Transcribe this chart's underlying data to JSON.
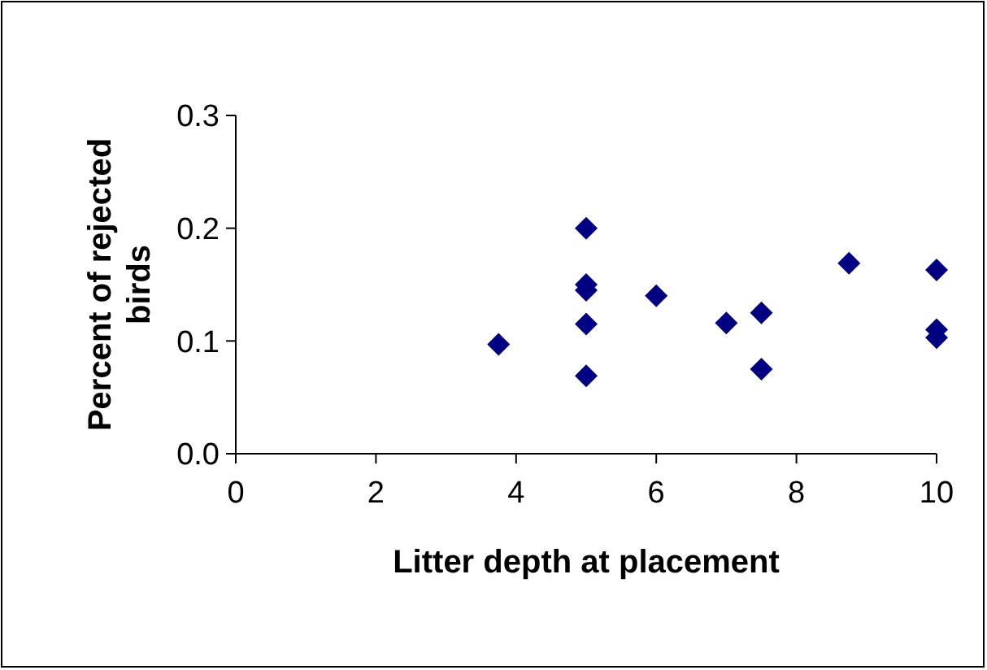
{
  "chart_data": {
    "type": "scatter",
    "xlabel": "Litter depth at placement",
    "ylabel": "Percent of rejected birds",
    "x": [
      3.75,
      5,
      5,
      5,
      5,
      5,
      6,
      7,
      7.5,
      7.5,
      8.75,
      10,
      10,
      10
    ],
    "values": [
      0.097,
      0.2,
      0.15,
      0.145,
      0.115,
      0.069,
      0.14,
      0.116,
      0.125,
      0.075,
      0.169,
      0.163,
      0.11,
      0.103
    ],
    "color": "#000080",
    "marker": "diamond",
    "xlim": [
      0,
      10
    ],
    "xticks": [
      0,
      2,
      4,
      6,
      8,
      10
    ],
    "ylim": [
      0,
      0.3
    ],
    "yticks": [
      {
        "value": 0,
        "label": "0.0"
      },
      {
        "value": 0.1,
        "label": "0.1"
      },
      {
        "value": 0.2,
        "label": "0.2"
      },
      {
        "value": 0.3,
        "label": "0.3"
      }
    ],
    "grid": false
  }
}
